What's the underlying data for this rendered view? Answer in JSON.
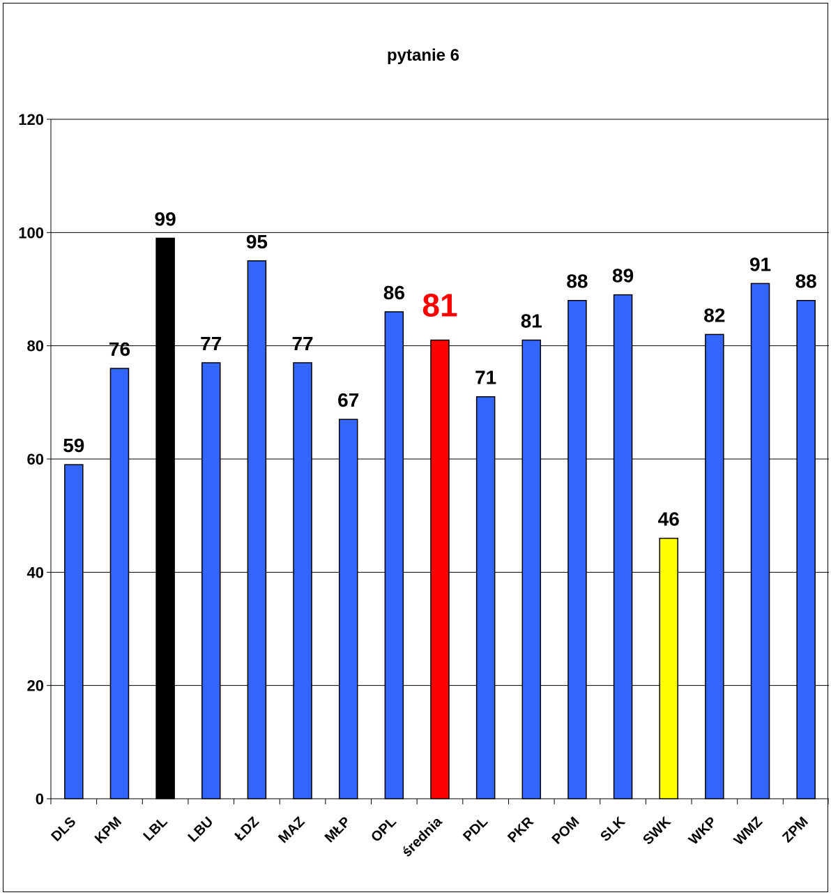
{
  "chart_data": {
    "type": "bar",
    "title": "pytanie 6",
    "xlabel": "",
    "ylabel": "",
    "ylim": [
      0,
      120
    ],
    "yticks": [
      0,
      20,
      40,
      60,
      80,
      100,
      120
    ],
    "grid": true,
    "legend": "none",
    "categories": [
      "DLS",
      "KPM",
      "LBL",
      "LBU",
      "ŁDZ",
      "MAZ",
      "MŁP",
      "OPL",
      "średnia",
      "PDL",
      "PKR",
      "POM",
      "SLK",
      "SWK",
      "WKP",
      "WMZ",
      "ZPM"
    ],
    "values": [
      59,
      76,
      99,
      77,
      95,
      77,
      67,
      86,
      81,
      71,
      81,
      88,
      89,
      46,
      82,
      91,
      88
    ],
    "bar_colors": [
      "#3366ff",
      "#3366ff",
      "#000000",
      "#3366ff",
      "#3366ff",
      "#3366ff",
      "#3366ff",
      "#3366ff",
      "#ff0000",
      "#3366ff",
      "#3366ff",
      "#3366ff",
      "#3366ff",
      "#ffff00",
      "#3366ff",
      "#3366ff",
      "#3366ff"
    ],
    "data_label_colors": [
      "#000000",
      "#000000",
      "#000000",
      "#000000",
      "#000000",
      "#000000",
      "#000000",
      "#000000",
      "#ff0000",
      "#000000",
      "#000000",
      "#000000",
      "#000000",
      "#000000",
      "#000000",
      "#000000",
      "#000000"
    ],
    "highlight": {
      "category": "średnia",
      "label_emphasis": "large-red"
    }
  }
}
